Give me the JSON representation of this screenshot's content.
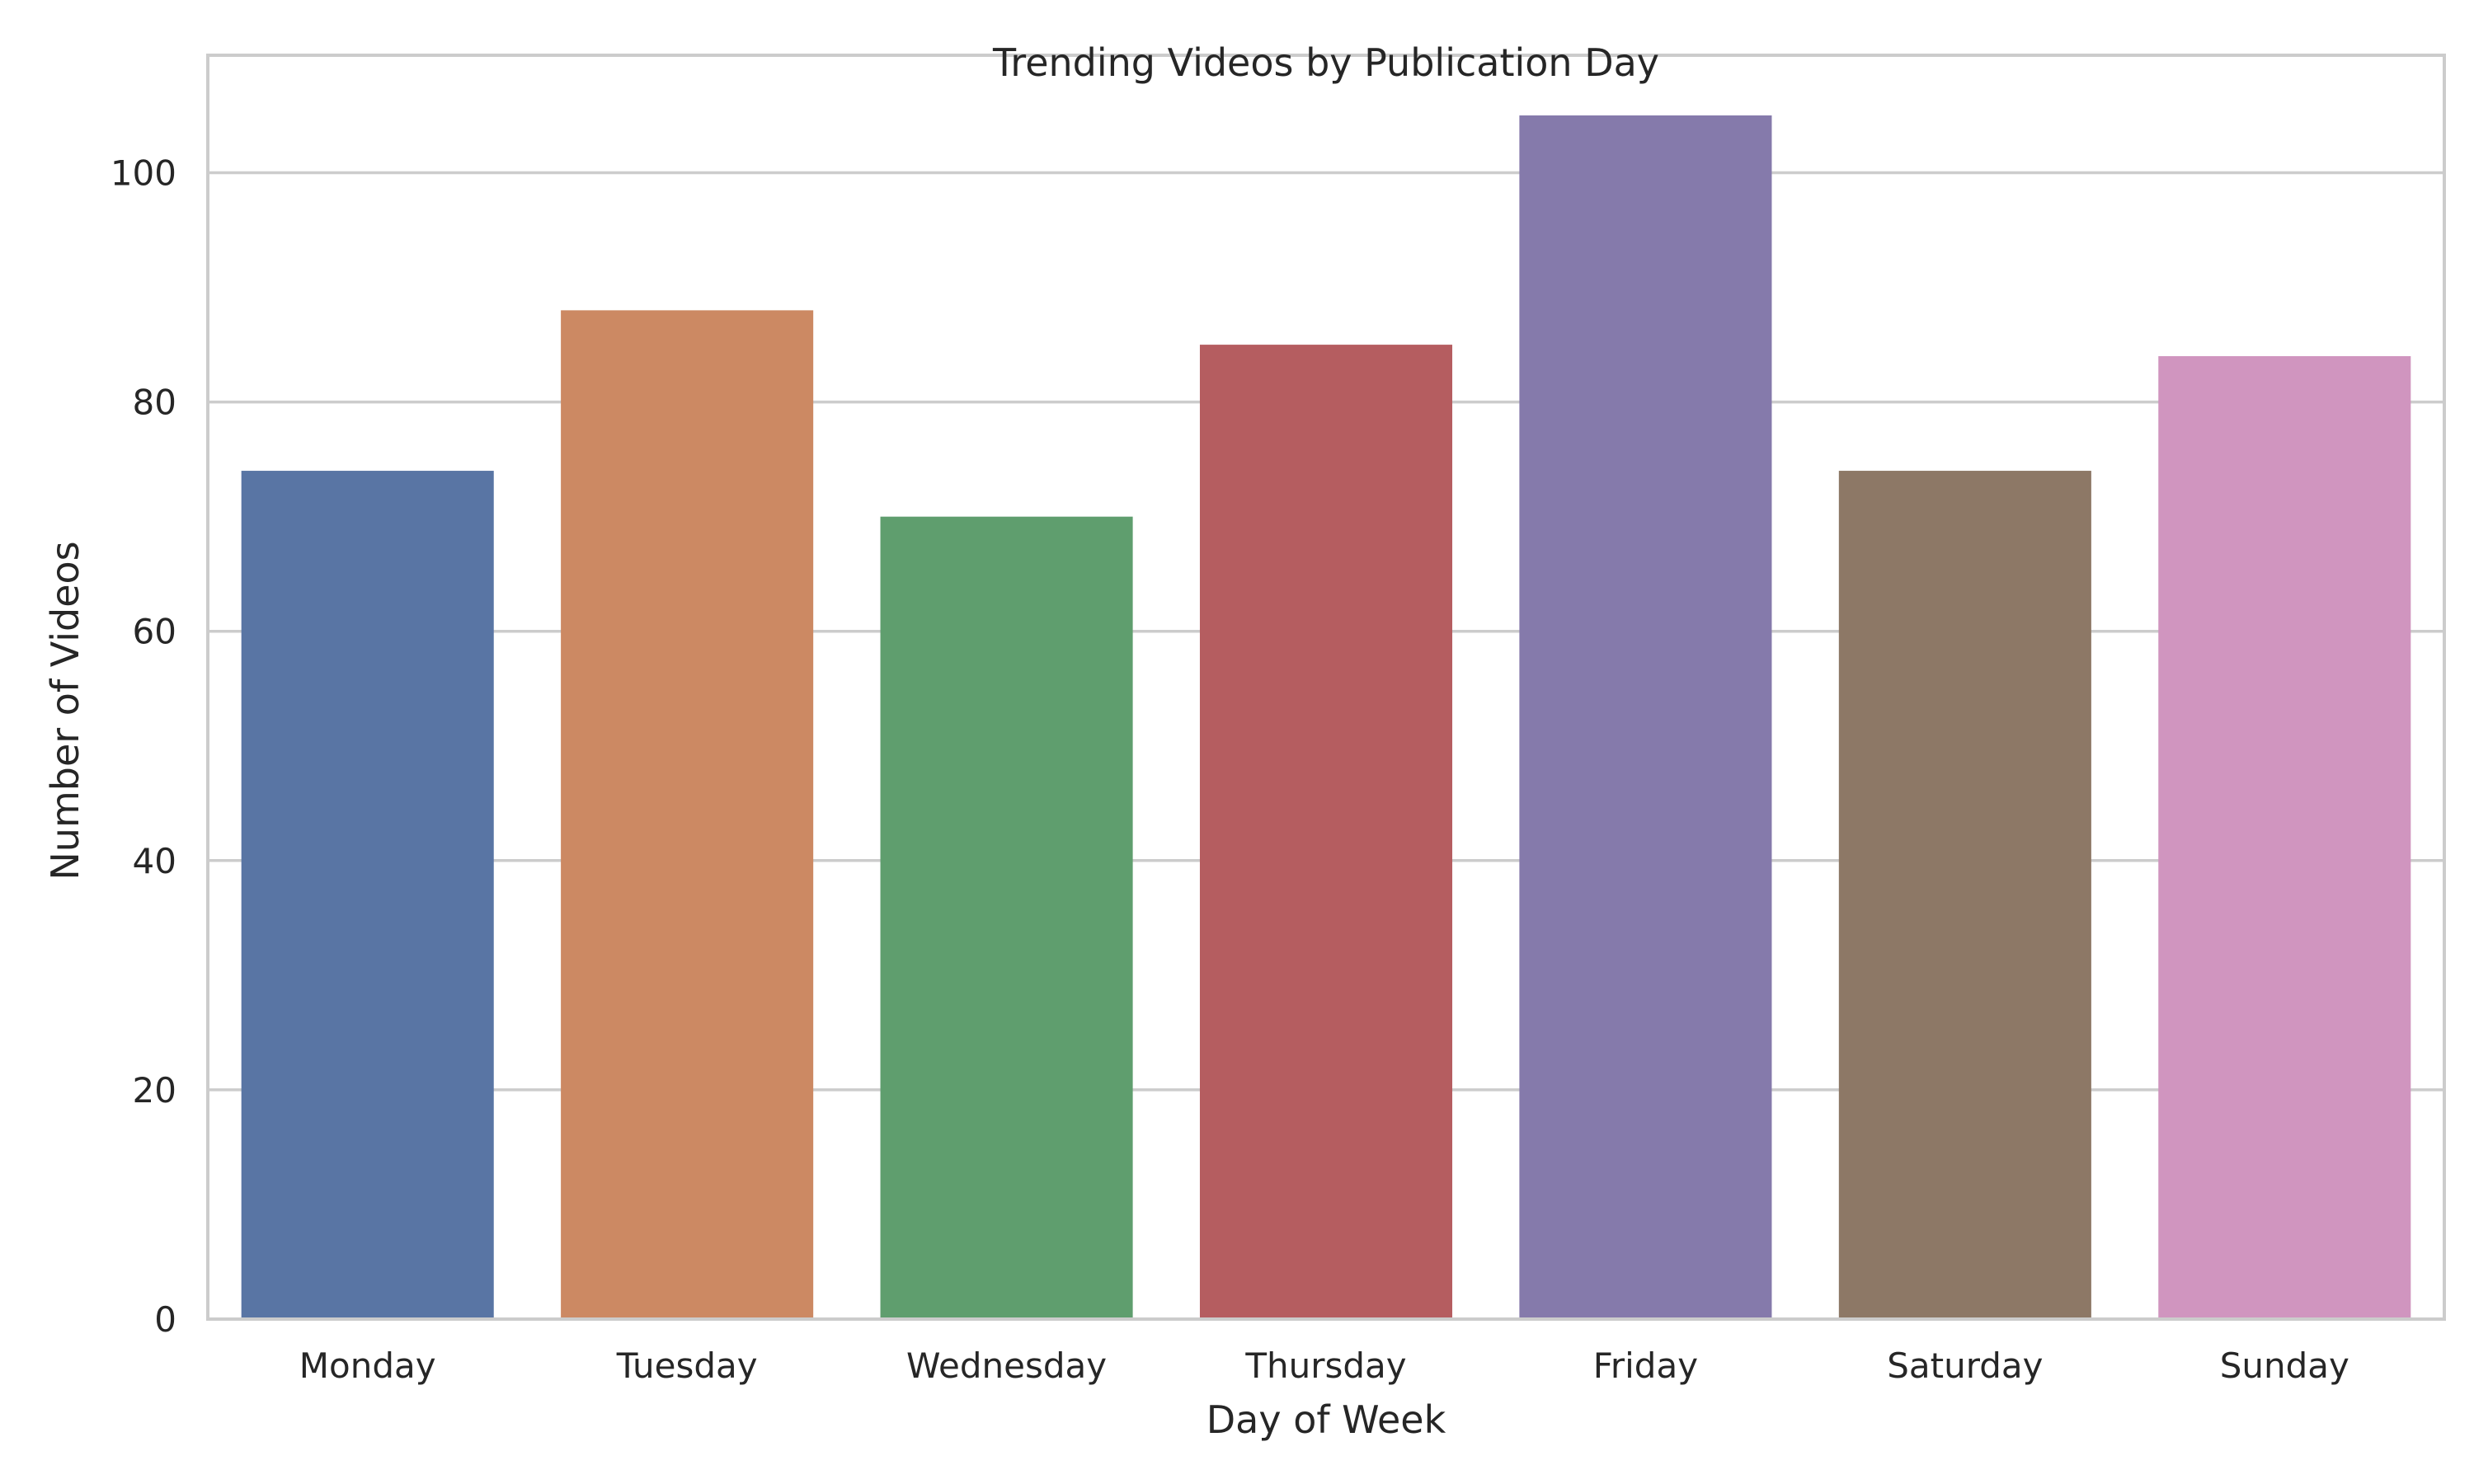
{
  "chart_data": {
    "type": "bar",
    "title": "Trending Videos by Publication Day",
    "xlabel": "Day of Week",
    "ylabel": "Number of Videos",
    "categories": [
      "Monday",
      "Tuesday",
      "Wednesday",
      "Thursday",
      "Friday",
      "Saturday",
      "Sunday"
    ],
    "values": [
      74,
      88,
      70,
      85,
      105,
      74,
      84
    ],
    "colors": [
      "#5975a4",
      "#cc8963",
      "#5f9e6e",
      "#b55d60",
      "#857aab",
      "#8d7866",
      "#d095bf"
    ],
    "ylim": [
      0,
      110.25
    ],
    "yticks": [
      0,
      20,
      40,
      60,
      80,
      100
    ],
    "ytick_labels": [
      "0",
      "20",
      "40",
      "60",
      "80",
      "100"
    ],
    "grid": "horizontal",
    "legend": "none"
  }
}
